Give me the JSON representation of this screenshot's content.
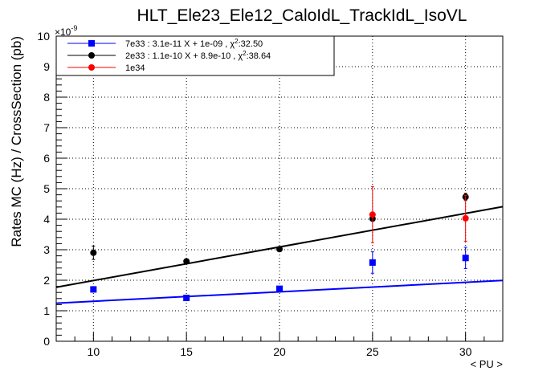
{
  "chart_data": {
    "type": "scatter",
    "title": "HLT_Ele23_Ele12_CaloIdL_TrackIdL_IsoVL",
    "xlabel": "< PU >",
    "ylabel": "Rates MC (Hz) / CrossSection (pb)",
    "y_multiplier_base": "×10",
    "y_multiplier_exp": "-9",
    "xlim": [
      8,
      32
    ],
    "ylim": [
      0,
      10
    ],
    "x_ticks": [
      10,
      15,
      20,
      25,
      30
    ],
    "y_ticks": [
      0,
      1,
      2,
      3,
      4,
      5,
      6,
      7,
      8,
      9,
      10
    ],
    "grid": true,
    "legend_position": "top-left",
    "series": [
      {
        "name": "7e33",
        "legend_prefix": "7e33 : 3.1e-11 X + 1e-09 , χ",
        "legend_suffix": ":32.50",
        "color": "#0000ff",
        "marker": "square",
        "points": [
          {
            "x": 10,
            "y": 1.7,
            "err": 0.0
          },
          {
            "x": 15,
            "y": 1.42,
            "err": 0.0
          },
          {
            "x": 20,
            "y": 1.72,
            "err": 0.0
          },
          {
            "x": 25,
            "y": 2.58,
            "err": 0.35
          },
          {
            "x": 30,
            "y": 2.73,
            "err": 0.35
          }
        ],
        "fit": {
          "slope": 0.031,
          "intercept": 1.0
        }
      },
      {
        "name": "2e33",
        "legend_prefix": "2e33 : 1.1e-10 X + 8.9e-10 , χ",
        "legend_suffix": ":38.64",
        "color": "#000000",
        "marker": "circle",
        "points": [
          {
            "x": 10,
            "y": 2.9,
            "err": 0.22
          },
          {
            "x": 15,
            "y": 2.62,
            "err": 0.0
          },
          {
            "x": 20,
            "y": 3.02,
            "err": 0.0
          },
          {
            "x": 25,
            "y": 4.02,
            "err": 0.0
          },
          {
            "x": 30,
            "y": 4.73,
            "err": 0.12
          }
        ],
        "fit": {
          "slope": 0.11,
          "intercept": 0.89
        }
      },
      {
        "name": "1e34",
        "legend_prefix": "1e34",
        "legend_suffix": "",
        "color": "#ff0000",
        "marker": "circle",
        "points": [
          {
            "x": 25,
            "y": 4.15,
            "err": 0.92
          },
          {
            "x": 30,
            "y": 4.03,
            "err": 0.75
          }
        ]
      }
    ]
  }
}
